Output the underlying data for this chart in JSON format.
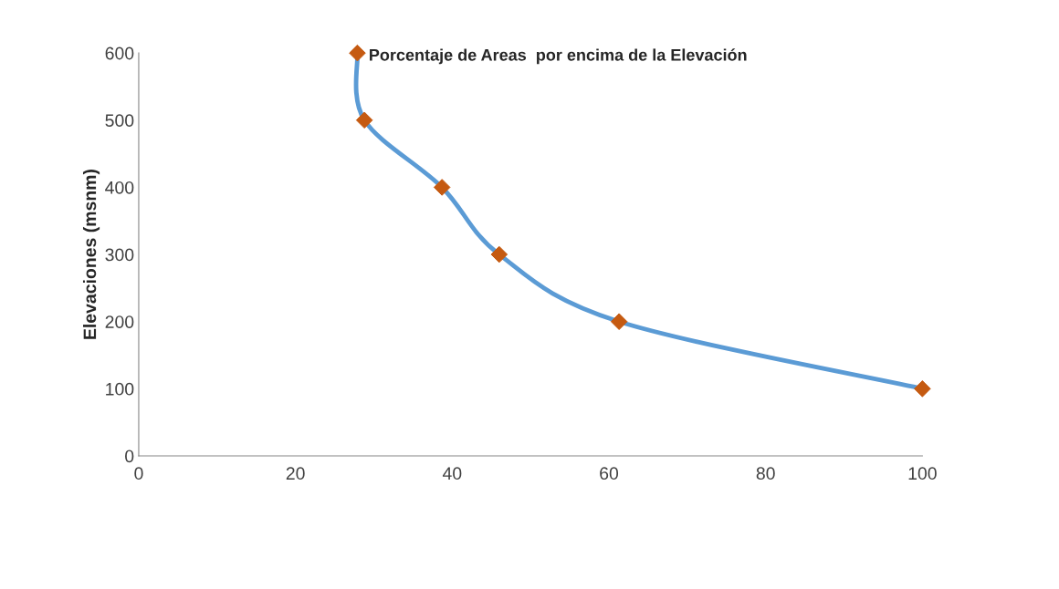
{
  "chart_data": {
    "type": "line",
    "title": "Porcentaje de Areas  por encima de la Elevación",
    "ylabel": "Elevaciones (msnm)",
    "x": [
      27.9,
      28.8,
      38.7,
      46.0,
      61.3,
      100
    ],
    "series": [
      {
        "color": "#5b9bd5",
        "colors": [
          "#c55a11",
          "#c55a11",
          "#c55a11",
          "#c55a11",
          "#c55a11",
          "#c55a11"
        ],
        "values": [
          600,
          500,
          400,
          300,
          200,
          100
        ]
      }
    ],
    "xlim": [
      0,
      100
    ],
    "xticks": [
      0,
      20,
      40,
      60,
      80,
      100
    ],
    "ylim": [
      0,
      600
    ],
    "yticks": [
      0,
      100,
      200,
      300,
      400,
      500,
      600
    ],
    "marker": "diamond",
    "line_style": "solid",
    "grid": false,
    "legend": false
  }
}
